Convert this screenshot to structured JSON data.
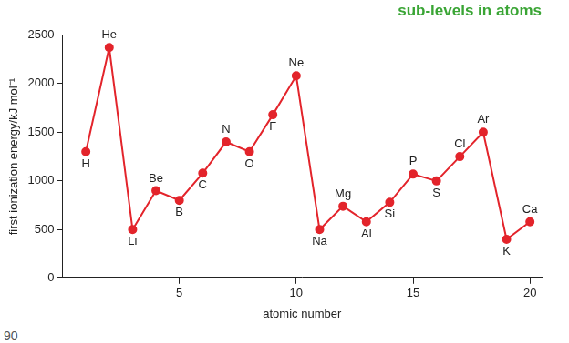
{
  "chart_data": {
    "type": "line",
    "title": "sub-levels in atoms",
    "x_label": "atomic number",
    "y_label": "first ionization energy/kJ mol⁻¹",
    "x": [
      1,
      2,
      3,
      4,
      5,
      6,
      7,
      8,
      9,
      10,
      11,
      12,
      13,
      14,
      15,
      16,
      17,
      18,
      19,
      20
    ],
    "values": [
      1300,
      2370,
      500,
      900,
      800,
      1080,
      1400,
      1300,
      1680,
      2080,
      500,
      740,
      580,
      780,
      1070,
      1000,
      1250,
      1500,
      400,
      580
    ],
    "point_labels": [
      "H",
      "He",
      "Li",
      "Be",
      "B",
      "C",
      "N",
      "O",
      "F",
      "Ne",
      "Na",
      "Mg",
      "Al",
      "Si",
      "P",
      "S",
      "Cl",
      "Ar",
      "K",
      "Ca"
    ],
    "color": "#e3242b",
    "marker": "circle",
    "xlim": [
      0,
      20.5
    ],
    "xticks": [
      5,
      10,
      15,
      20
    ],
    "ylim": [
      0,
      2500
    ],
    "yticks": [
      0,
      500,
      1000,
      1500,
      2000,
      2500
    ],
    "grid": false
  },
  "page_number": "90"
}
